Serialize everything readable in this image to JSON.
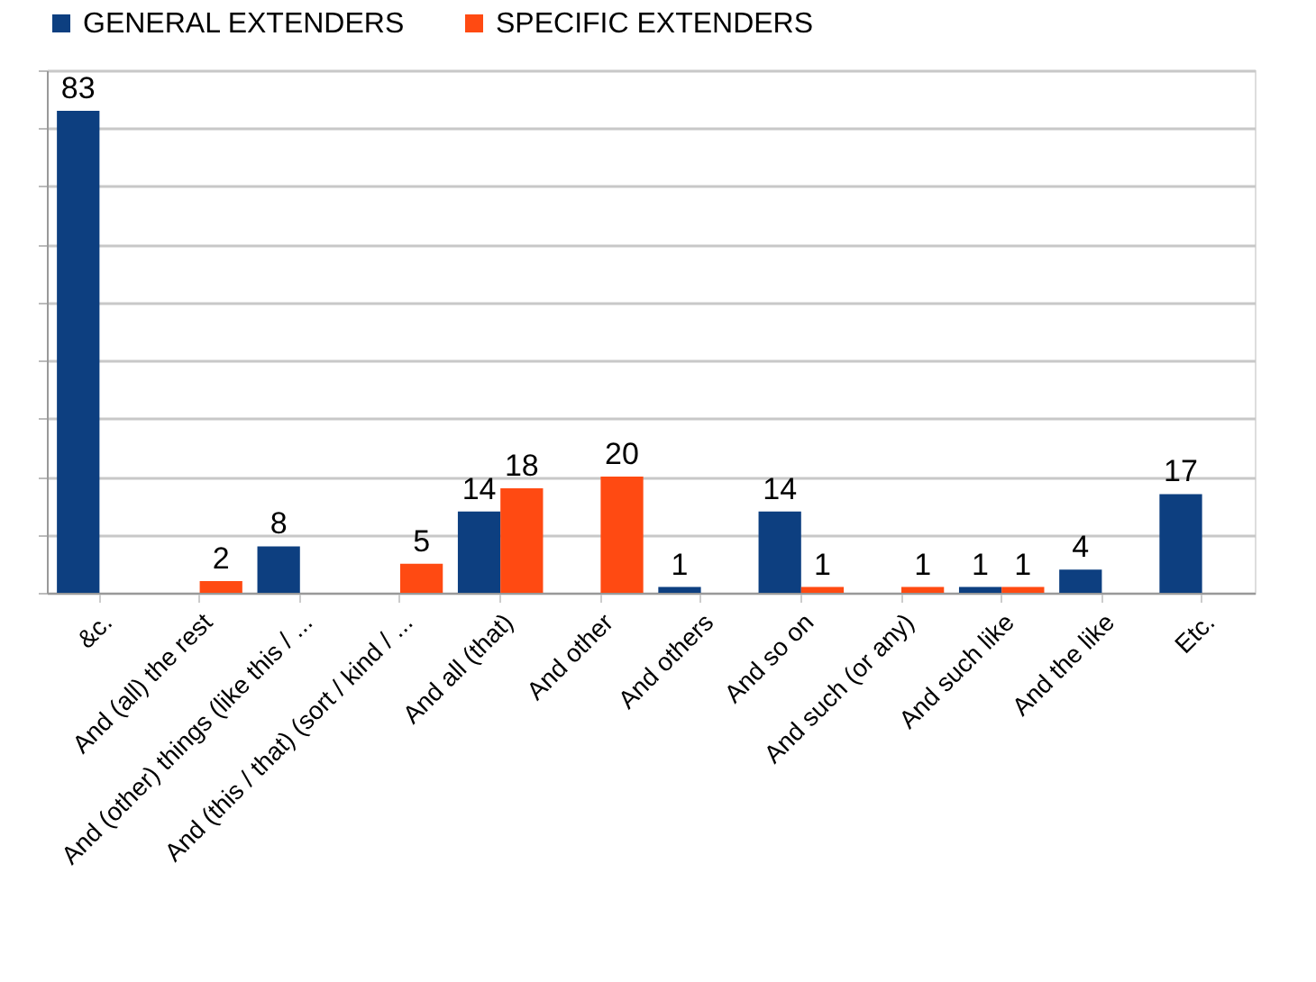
{
  "chart_data": {
    "type": "bar",
    "categories": [
      "&c.",
      "And (all) the rest",
      "And (other) things (like this / ...",
      "And (this / that) (sort / kind / ...",
      "And all (that)",
      "And other",
      "And others",
      "And so on",
      "And such (or any)",
      "And such like",
      "And the like",
      "Etc."
    ],
    "series": [
      {
        "name": "GENERAL EXTENDERS",
        "color": "#0d3f80",
        "values": [
          83,
          null,
          8,
          null,
          14,
          null,
          1,
          14,
          null,
          1,
          4,
          17
        ]
      },
      {
        "name": "SPECIFIC EXTENDERS",
        "color": "#ff4a12",
        "values": [
          null,
          2,
          null,
          5,
          18,
          20,
          null,
          1,
          1,
          1,
          null,
          null
        ]
      }
    ],
    "ylim": [
      0,
      90
    ],
    "yticks": [
      {
        "value": 0,
        "label": null
      },
      {
        "value": 10,
        "label": null
      },
      {
        "value": 20,
        "label": null
      },
      {
        "value": 30,
        "label": null
      },
      {
        "value": 40,
        "label": null
      },
      {
        "value": 50,
        "label": null
      },
      {
        "value": 60,
        "label": null
      },
      {
        "value": 70,
        "label": null
      },
      {
        "value": 80,
        "label": null
      },
      {
        "value": 90,
        "label": null
      }
    ],
    "tick_labels": "x",
    "grid": "y",
    "legend": "top",
    "data_labels": true
  }
}
